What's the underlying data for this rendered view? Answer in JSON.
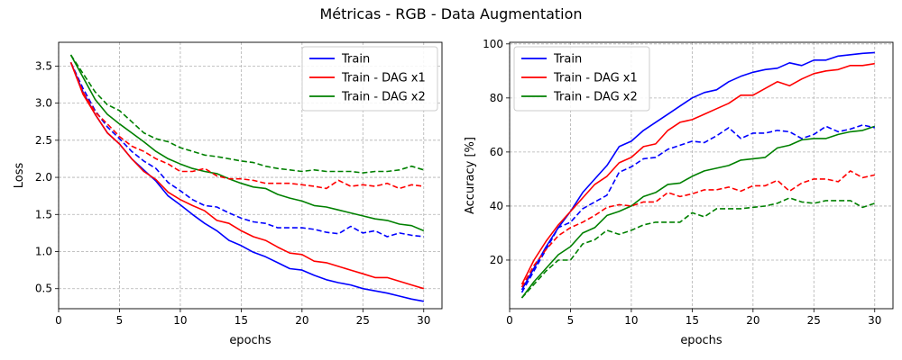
{
  "figure": {
    "suptitle": "Métricas - RGB - Data Augmentation"
  },
  "chart_data": [
    {
      "type": "line",
      "xlabel": "epochs",
      "ylabel": "Loss",
      "xlim": [
        0,
        31.5
      ],
      "ylim": [
        0.23,
        3.82
      ],
      "xticks": [
        0,
        5,
        10,
        15,
        20,
        25,
        30
      ],
      "yticks": [
        0.5,
        1.0,
        1.5,
        2.0,
        2.5,
        3.0,
        3.5
      ],
      "grid": true,
      "legend_position": "top-right",
      "x": [
        1,
        2,
        3,
        4,
        5,
        6,
        7,
        8,
        9,
        10,
        11,
        12,
        13,
        14,
        15,
        16,
        17,
        18,
        19,
        20,
        21,
        22,
        23,
        24,
        25,
        26,
        27,
        28,
        29,
        30
      ],
      "series": [
        {
          "name": "Train",
          "color": "#0000ff",
          "style": "solid",
          "values": [
            3.55,
            3.15,
            2.85,
            2.6,
            2.45,
            2.25,
            2.1,
            1.95,
            1.75,
            1.63,
            1.5,
            1.38,
            1.28,
            1.15,
            1.08,
            0.99,
            0.93,
            0.85,
            0.77,
            0.75,
            0.68,
            0.62,
            0.58,
            0.55,
            0.5,
            0.47,
            0.44,
            0.4,
            0.36,
            0.33
          ]
        },
        {
          "name": "Train - DAG x1",
          "color": "#ff0000",
          "style": "solid",
          "values": [
            3.55,
            3.12,
            2.85,
            2.6,
            2.45,
            2.25,
            2.08,
            1.97,
            1.8,
            1.7,
            1.62,
            1.55,
            1.42,
            1.38,
            1.28,
            1.2,
            1.15,
            1.06,
            0.98,
            0.96,
            0.87,
            0.85,
            0.8,
            0.75,
            0.7,
            0.65,
            0.65,
            0.6,
            0.55,
            0.5
          ]
        },
        {
          "name": "Train - DAG x2",
          "color": "#008000",
          "style": "solid",
          "values": [
            3.65,
            3.35,
            3.05,
            2.85,
            2.72,
            2.6,
            2.48,
            2.35,
            2.25,
            2.18,
            2.12,
            2.08,
            2.05,
            1.98,
            1.92,
            1.87,
            1.85,
            1.77,
            1.72,
            1.68,
            1.62,
            1.6,
            1.56,
            1.52,
            1.48,
            1.44,
            1.42,
            1.37,
            1.35,
            1.28
          ]
        },
        {
          "name": "",
          "color": "#0000ff",
          "style": "dashed",
          "values": [
            3.55,
            3.2,
            2.9,
            2.68,
            2.52,
            2.35,
            2.22,
            2.12,
            1.93,
            1.82,
            1.7,
            1.62,
            1.6,
            1.52,
            1.45,
            1.4,
            1.38,
            1.32,
            1.32,
            1.32,
            1.3,
            1.26,
            1.24,
            1.34,
            1.25,
            1.28,
            1.2,
            1.25,
            1.22,
            1.2
          ]
        },
        {
          "name": "",
          "color": "#ff0000",
          "style": "dashed",
          "values": [
            3.55,
            3.15,
            2.88,
            2.72,
            2.55,
            2.42,
            2.35,
            2.25,
            2.18,
            2.08,
            2.08,
            2.12,
            2.02,
            1.98,
            1.98,
            1.96,
            1.92,
            1.92,
            1.92,
            1.9,
            1.88,
            1.85,
            1.96,
            1.88,
            1.9,
            1.88,
            1.92,
            1.85,
            1.9,
            1.88
          ]
        },
        {
          "name": "",
          "color": "#008000",
          "style": "dashed",
          "values": [
            3.65,
            3.4,
            3.15,
            2.98,
            2.9,
            2.75,
            2.6,
            2.52,
            2.48,
            2.4,
            2.35,
            2.3,
            2.28,
            2.25,
            2.22,
            2.2,
            2.15,
            2.12,
            2.1,
            2.08,
            2.1,
            2.08,
            2.08,
            2.08,
            2.06,
            2.08,
            2.08,
            2.1,
            2.15,
            2.1
          ]
        }
      ]
    },
    {
      "type": "line",
      "xlabel": "epochs",
      "ylabel": "Accuracy [%]",
      "xlim": [
        0,
        31.5
      ],
      "ylim": [
        2,
        100.6
      ],
      "xticks": [
        0,
        5,
        10,
        15,
        20,
        25,
        30
      ],
      "yticks": [
        20,
        40,
        60,
        80,
        100
      ],
      "grid": true,
      "legend_position": "top-left",
      "x": [
        1,
        2,
        3,
        4,
        5,
        6,
        7,
        8,
        9,
        10,
        11,
        12,
        13,
        14,
        15,
        16,
        17,
        18,
        19,
        20,
        21,
        22,
        23,
        24,
        25,
        26,
        27,
        28,
        29,
        30
      ],
      "series": [
        {
          "name": "Train",
          "color": "#0000ff",
          "style": "solid",
          "values": [
            9,
            17,
            25,
            32,
            38,
            45,
            50,
            55,
            62,
            64,
            68,
            71,
            74,
            77,
            80,
            82,
            83,
            86,
            88,
            89.5,
            90.5,
            91,
            93,
            92,
            94,
            94,
            95.5,
            96,
            96.5,
            96.8
          ]
        },
        {
          "name": "Train - DAG x1",
          "color": "#ff0000",
          "style": "solid",
          "values": [
            11,
            20,
            27,
            33,
            38,
            43,
            48,
            51,
            56,
            58,
            62,
            63,
            68,
            71,
            72,
            74,
            76,
            78,
            81,
            81,
            83.5,
            86,
            84.5,
            87,
            89,
            90,
            90.5,
            92,
            92,
            92.7
          ]
        },
        {
          "name": "Train - DAG x2",
          "color": "#008000",
          "style": "solid",
          "values": [
            6,
            12,
            17,
            22,
            25,
            30,
            32,
            36.5,
            38,
            40,
            43.5,
            45,
            48,
            48.5,
            51,
            53,
            54,
            55,
            57,
            57.5,
            58,
            61.5,
            62.5,
            64.5,
            65,
            65,
            66.5,
            67.5,
            68,
            69.5
          ]
        },
        {
          "name": "",
          "color": "#0000ff",
          "style": "dashed",
          "values": [
            8,
            16,
            24,
            32,
            34,
            39,
            41.5,
            44,
            52.5,
            54.5,
            57.5,
            58,
            61,
            62.5,
            64,
            63.5,
            66,
            69,
            65,
            67,
            67,
            68,
            67.5,
            65,
            66.5,
            69.5,
            67.5,
            68.5,
            70,
            69
          ]
        },
        {
          "name": "",
          "color": "#ff0000",
          "style": "dashed",
          "values": [
            10,
            18,
            24,
            29,
            32,
            34,
            36.5,
            39.5,
            40.5,
            40,
            41.5,
            41.5,
            45,
            43.5,
            44.5,
            46,
            46,
            47,
            45.5,
            47.5,
            47.5,
            49.5,
            45.5,
            48.5,
            50,
            50,
            49,
            53,
            50.5,
            51.5
          ]
        },
        {
          "name": "",
          "color": "#008000",
          "style": "dashed",
          "values": [
            6,
            11,
            16,
            20,
            20,
            26,
            27.5,
            31,
            29.5,
            31,
            33,
            34,
            34,
            34,
            37.5,
            36,
            39,
            39,
            39,
            39.5,
            40,
            41,
            43,
            41.5,
            41,
            42,
            42,
            42,
            39.5,
            41
          ]
        }
      ]
    }
  ]
}
